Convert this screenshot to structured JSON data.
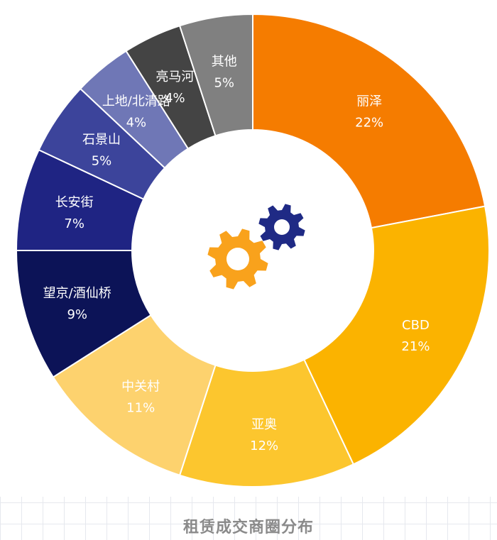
{
  "caption": "租赁成交商圈分布",
  "chart_data": {
    "type": "donut",
    "title": "租赁成交商圈分布",
    "unit": "%",
    "slices": [
      {
        "label": "丽泽",
        "value": 22,
        "display": "22%",
        "color": "#f57c00",
        "text_color": "#ffffff"
      },
      {
        "label": "CBD",
        "value": 21,
        "display": "21%",
        "color": "#fbb300",
        "text_color": "#ffffff"
      },
      {
        "label": "亚奥",
        "value": 12,
        "display": "12%",
        "color": "#fcc62e",
        "text_color": "#ffffff"
      },
      {
        "label": "中关村",
        "value": 11,
        "display": "11%",
        "color": "#fdd26e",
        "text_color": "#ffffff"
      },
      {
        "label": "望京/酒仙桥",
        "value": 9,
        "display": "9%",
        "color": "#0c1357",
        "text_color": "#ffffff"
      },
      {
        "label": "长安街",
        "value": 7,
        "display": "7%",
        "color": "#1f2483",
        "text_color": "#ffffff"
      },
      {
        "label": "石景山",
        "value": 5,
        "display": "5%",
        "color": "#3c449b",
        "text_color": "#ffffff"
      },
      {
        "label": "上地/北清路",
        "value": 4,
        "display": "4%",
        "color": "#6f77b6",
        "text_color": "#ffffff"
      },
      {
        "label": "亮马河",
        "value": 4,
        "display": "4%",
        "color": "#444444",
        "text_color": "#ffffff"
      },
      {
        "label": "其他",
        "value": 5,
        "display": "5%",
        "color": "#808080",
        "text_color": "#ffffff"
      }
    ]
  },
  "center_icons": [
    {
      "name": "gear-large-icon",
      "color": "#f9a21c"
    },
    {
      "name": "gear-small-icon",
      "color": "#1f2a85"
    }
  ]
}
